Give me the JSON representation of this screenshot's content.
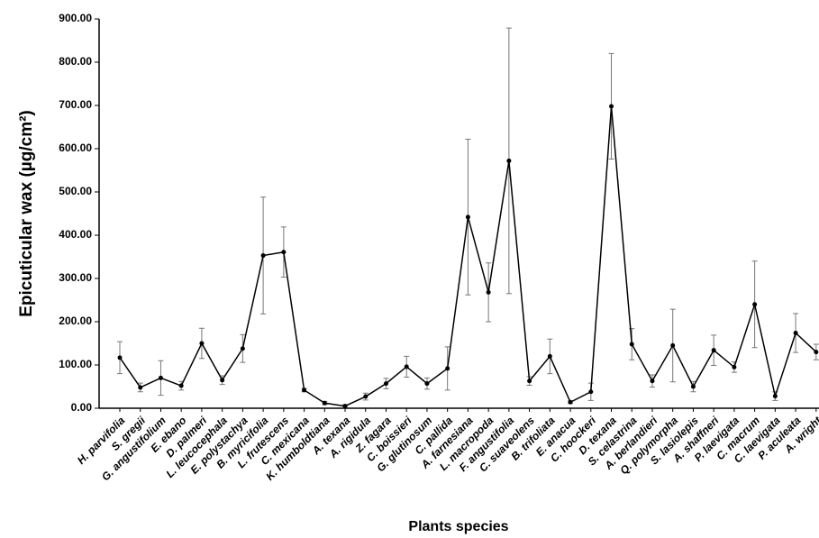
{
  "chart_data": {
    "type": "line",
    "y_label": "Epicuticular wax (µg/cm²)",
    "x_label": "Plants species",
    "categories": [
      "H. parvifolia",
      "S. gregii",
      "G. angustifolium",
      "E. ebano",
      "D. palmeri",
      "L. leucocephala",
      "E. polystachya",
      "B. myricifolia",
      "L. frutescens",
      "C. mexicana",
      "K. humboldtiana",
      "A. texana",
      "A. rigidula",
      "Z. fagara",
      "C. boissieri",
      "G. glutinosum",
      "C. pallida",
      "A. farnesiana",
      "L. macropoda",
      "F. angustifolia",
      "C. suaveolens",
      "B. trifoliata",
      "E. anacua",
      "C. hoockeri",
      "D. texana",
      "S. celastrina",
      "A. berlandieri",
      "Q. polymorpha",
      "S. lasiolepis",
      "A. shaffneri",
      "P. laevigata",
      "C. macrum",
      "C. laevigata",
      "P. aculeata",
      "A. wright"
    ],
    "values": [
      117,
      48,
      70,
      52,
      150,
      65,
      138,
      353,
      361,
      42,
      12,
      5,
      27,
      57,
      96,
      57,
      92,
      442,
      268,
      572,
      63,
      120,
      14,
      38,
      698,
      148,
      63,
      145,
      50,
      134,
      95,
      240,
      28,
      174,
      130
    ],
    "errors": [
      37,
      10,
      40,
      10,
      35,
      10,
      32,
      135,
      58,
      4,
      4,
      3,
      8,
      12,
      24,
      13,
      50,
      180,
      68,
      307,
      10,
      40,
      3,
      20,
      122,
      36,
      14,
      84,
      12,
      35,
      12,
      100,
      10,
      45,
      18
    ],
    "color": "#000000",
    "ylim": [
      0,
      900
    ],
    "yticks": [
      {
        "value": 0,
        "label": "0.00"
      },
      {
        "value": 100,
        "label": "100.00"
      },
      {
        "value": 200,
        "label": "200.00"
      },
      {
        "value": 300,
        "label": "300.00"
      },
      {
        "value": 400,
        "label": "400.00"
      },
      {
        "value": 500,
        "label": "500.00"
      },
      {
        "value": 600,
        "label": "600.00"
      },
      {
        "value": 700,
        "label": "700.00"
      },
      {
        "value": 800,
        "label": "800.00"
      },
      {
        "value": 900,
        "label": "900.00"
      }
    ]
  }
}
